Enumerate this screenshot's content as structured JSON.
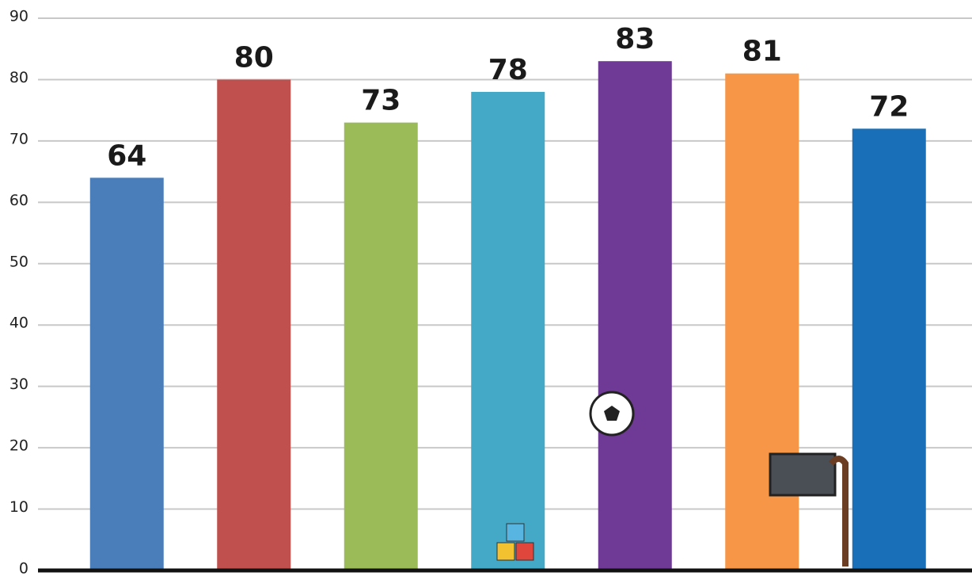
{
  "chart_data": {
    "type": "bar",
    "categories": [
      null,
      null,
      null,
      null,
      null,
      null,
      null
    ],
    "values": [
      64,
      80,
      73,
      78,
      83,
      81,
      72
    ],
    "colors": [
      "#4a7ebb",
      "#c0504d",
      "#9bbb59",
      "#43a9c6",
      "#6f3996",
      "#f79646",
      "#1a70b8"
    ],
    "ylim": [
      0,
      90
    ],
    "yticks": [
      0,
      10,
      20,
      30,
      40,
      50,
      60,
      70,
      80,
      90
    ],
    "grid": true
  }
}
